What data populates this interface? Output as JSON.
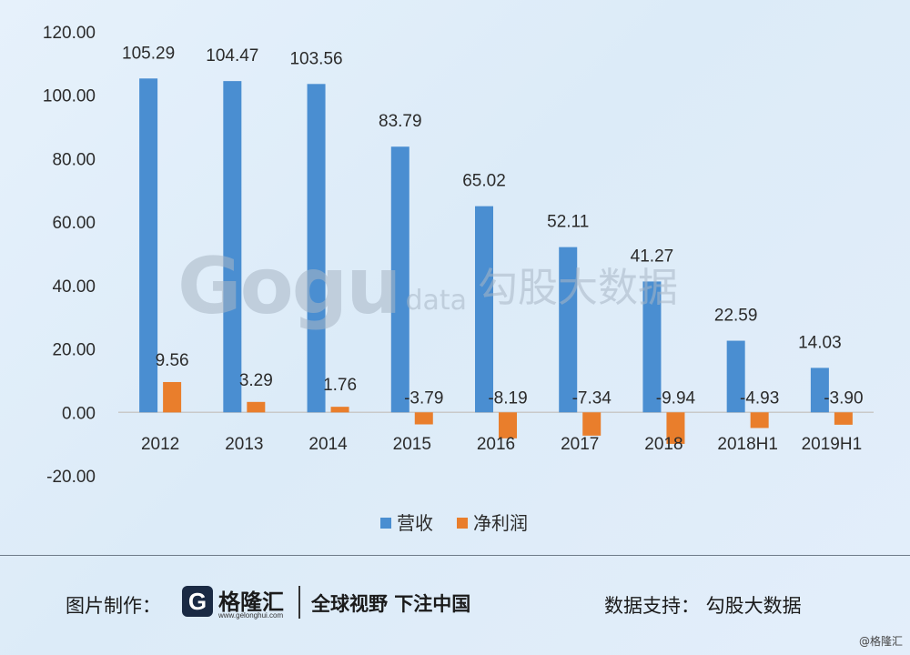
{
  "chart_data": {
    "type": "bar",
    "categories": [
      "2012",
      "2013",
      "2014",
      "2015",
      "2016",
      "2017",
      "2018",
      "2018H1",
      "2019H1"
    ],
    "series": [
      {
        "name": "营收",
        "color": "#4a8ed1",
        "values": [
          105.29,
          104.47,
          103.56,
          83.79,
          65.02,
          52.11,
          41.27,
          22.59,
          14.03
        ]
      },
      {
        "name": "净利润",
        "color": "#e97e2c",
        "values": [
          9.56,
          3.29,
          1.76,
          -3.79,
          -8.19,
          -7.34,
          -9.94,
          -4.93,
          -3.9
        ]
      }
    ],
    "series_labels": [
      [
        "105.29",
        "104.47",
        "103.56",
        "83.79",
        "65.02",
        "52.11",
        "41.27",
        "22.59",
        "14.03"
      ],
      [
        "9.56",
        "3.29",
        "1.76",
        "-3.79",
        "-8.19",
        "-7.34",
        "-9.94",
        "-4.93",
        "-3.90"
      ]
    ],
    "yticks": [
      "120.00",
      "100.00",
      "80.00",
      "60.00",
      "40.00",
      "20.00",
      "0.00",
      "-20.00"
    ],
    "ylim": [
      -20,
      120
    ],
    "legend": "bottom",
    "grid": false
  },
  "watermark": {
    "logo": "Gogu",
    "data": "data",
    "cn": "勾股大数据"
  },
  "footer": {
    "left_label": "图片制作：",
    "logo_letter": "G",
    "brand": "格隆汇",
    "domain": "www.gelonghui.com",
    "slogan": "全球视野 下注中国",
    "right_label": "数据支持：  勾股大数据"
  },
  "credit": "@格隆汇"
}
